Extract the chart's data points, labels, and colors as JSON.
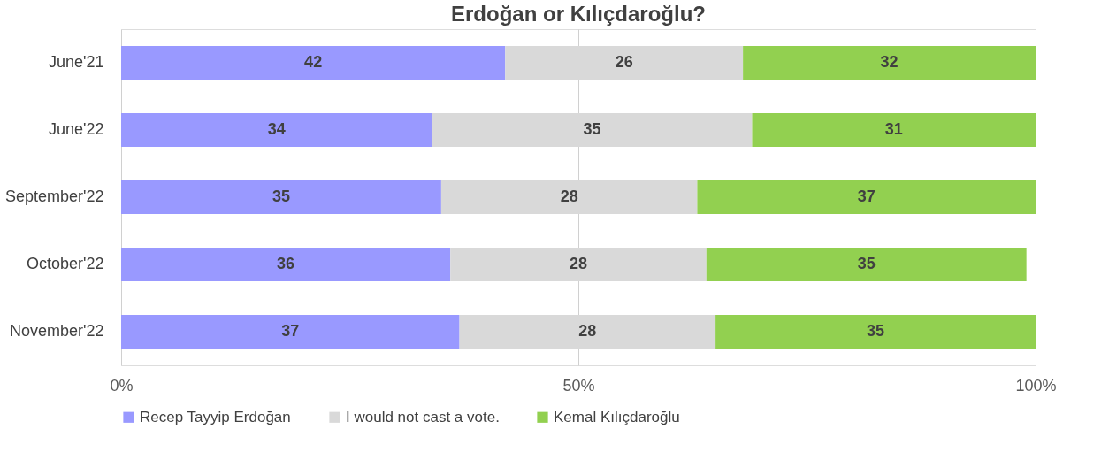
{
  "chart_data": {
    "type": "bar",
    "orientation": "horizontal",
    "stacked": true,
    "title": "Erdoğan or Kılıçdaroğlu?",
    "categories": [
      "June'21",
      "June'22",
      "September'22",
      "October'22",
      "November'22"
    ],
    "series": [
      {
        "name": "Recep Tayyip Erdoğan",
        "color": "#9999ff",
        "values": [
          42,
          34,
          35,
          36,
          37
        ]
      },
      {
        "name": "I would not cast a vote.",
        "color": "#d9d9d9",
        "values": [
          26,
          35,
          28,
          28,
          28
        ]
      },
      {
        "name": "Kemal Kılıçdaroğlu",
        "color": "#92d050",
        "values": [
          32,
          31,
          37,
          35,
          35
        ]
      }
    ],
    "xlim": [
      0,
      100
    ],
    "xticks": [
      {
        "value": 0,
        "label": "0%"
      },
      {
        "value": 50,
        "label": "50%"
      },
      {
        "value": 100,
        "label": "100%"
      }
    ],
    "grid": "x",
    "legend": "bottom",
    "data_labels": true
  }
}
